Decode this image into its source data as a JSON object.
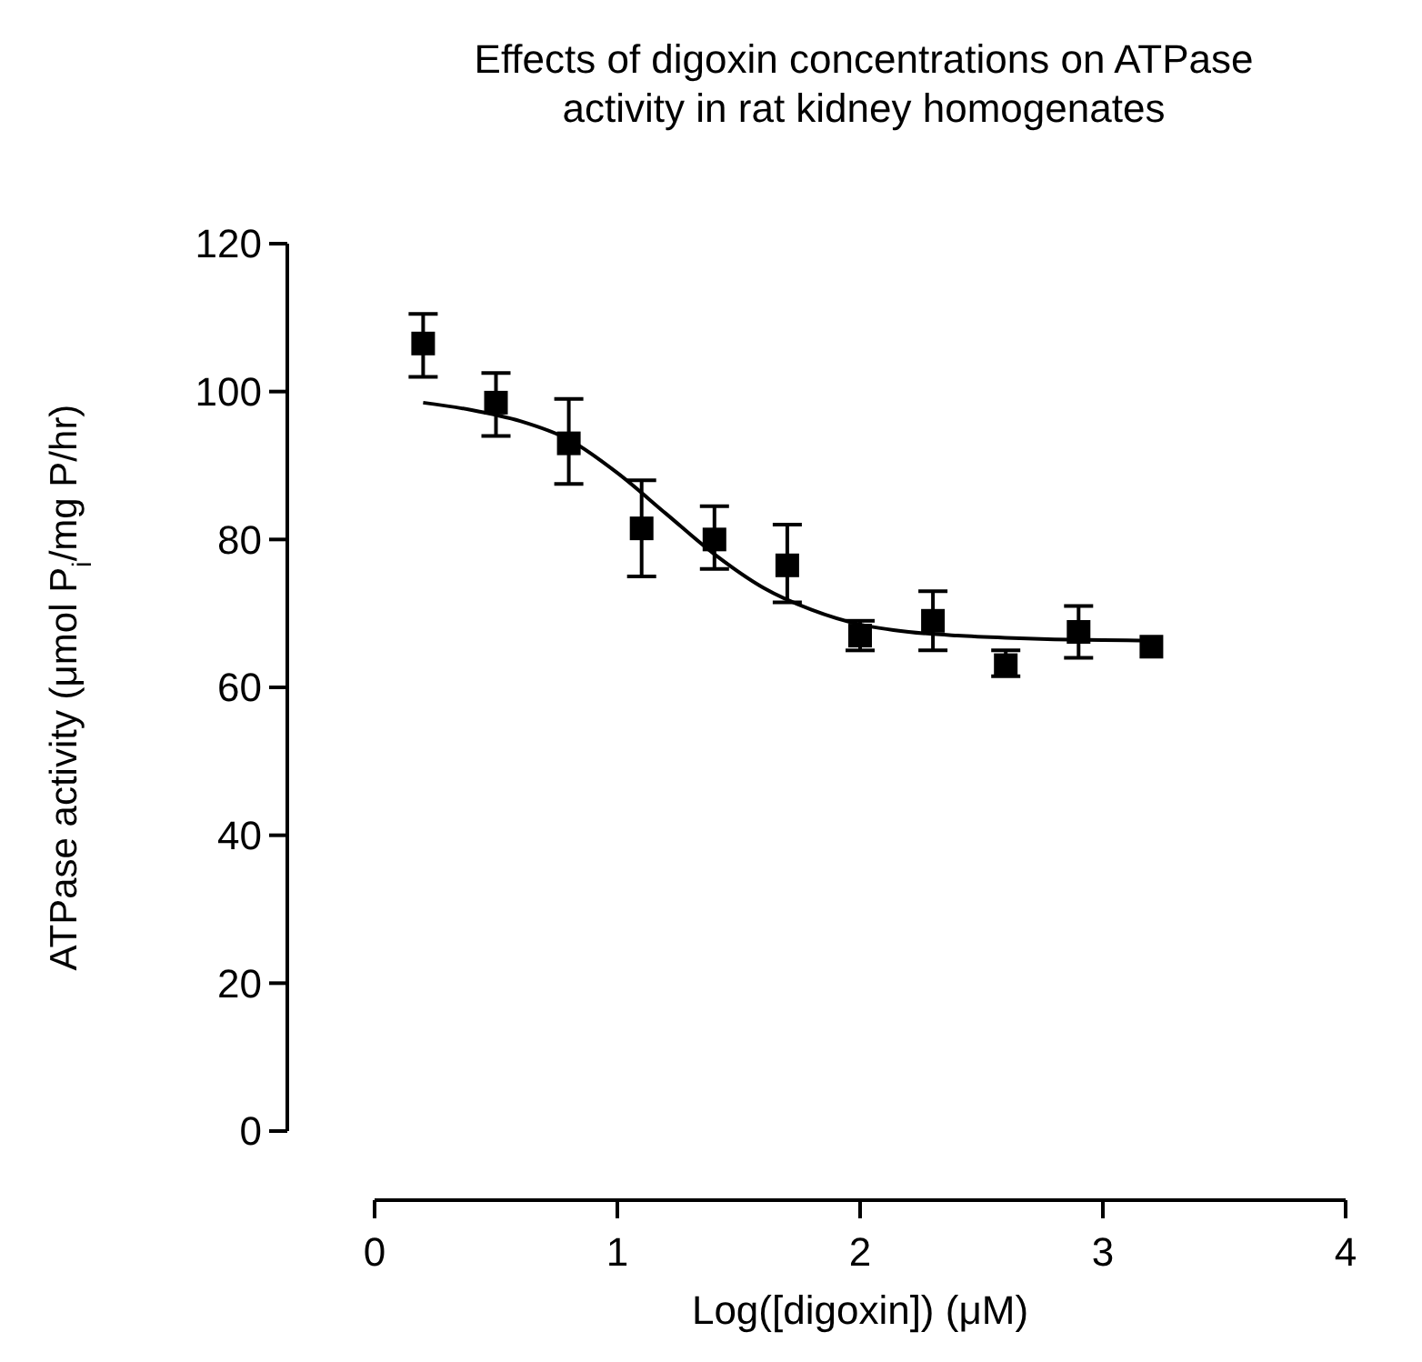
{
  "chart_data": {
    "type": "scatter",
    "title": "Effects of digoxin concentrations on ATPase\nactivity in rat kidney homogenates",
    "xlabel": "Log([digoxin]) (μM)",
    "ylabel": "ATPase activity (μmol P$_{i}$/mg P/hr)",
    "xlim": [
      0,
      4
    ],
    "ylim": [
      0,
      120
    ],
    "xticks": [
      0,
      1,
      2,
      3,
      4
    ],
    "yticks": [
      0,
      20,
      40,
      60,
      80,
      100,
      120
    ],
    "grid": false,
    "marker": "square",
    "series": [
      {
        "color": "#000000",
        "x": [
          0.2,
          0.5,
          0.8,
          1.1,
          1.4,
          1.7,
          2.0,
          2.3,
          2.6,
          2.9,
          3.2
        ],
        "values": [
          106.5,
          98.5,
          93,
          81.5,
          80,
          76.5,
          67,
          69,
          63,
          67.5,
          65.5
        ],
        "errors": [
          [
            102,
            110.5
          ],
          [
            94,
            102.5
          ],
          [
            87.5,
            99
          ],
          [
            75,
            88
          ],
          [
            76,
            84.5
          ],
          [
            71.5,
            82
          ],
          [
            65,
            69
          ],
          [
            65,
            73
          ],
          [
            61.5,
            65
          ],
          [
            64,
            71
          ],
          null
        ]
      },
      {
        "type": "line",
        "color": "#000000",
        "line_style": "solid",
        "marker": "none",
        "x": [
          0.2,
          0.4,
          0.6,
          0.8,
          1.0,
          1.2,
          1.4,
          1.6,
          1.8,
          2.0,
          2.2,
          2.4,
          2.6,
          2.8,
          3.0,
          3.2
        ],
        "values": [
          98.5,
          97.5,
          96,
          93.5,
          89,
          83.5,
          78,
          73.5,
          70.5,
          68.5,
          67.5,
          67,
          66.7,
          66.5,
          66.4,
          66.3
        ]
      }
    ]
  }
}
